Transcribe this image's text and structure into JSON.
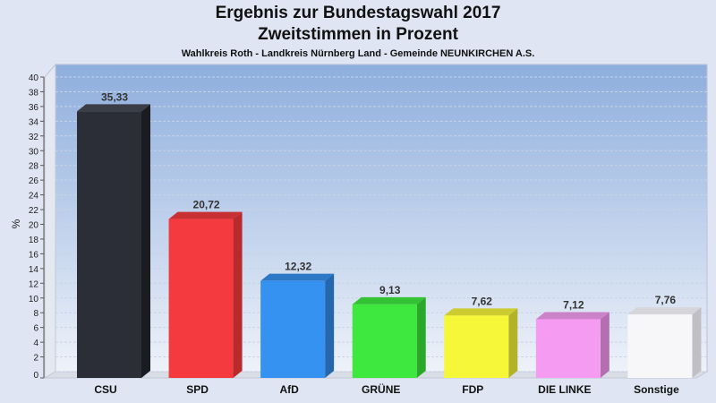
{
  "chart_data": {
    "type": "bar",
    "title": "Ergebnis zur Bundestagswahl 2017",
    "subtitle": "Zweitstimmen in Prozent",
    "caption": "Wahlkreis Roth - Landkreis Nürnberg Land - Gemeinde NEUNKIRCHEN A.S.",
    "ylabel": "%",
    "xlabel": "",
    "ylim": [
      0,
      40
    ],
    "ytick_step": 2,
    "grid": true,
    "legend": "none",
    "categories": [
      "CSU",
      "SPD",
      "AfD",
      "GRÜNE",
      "FDP",
      "DIE LINKE",
      "Sonstige"
    ],
    "values": [
      35.33,
      20.72,
      12.32,
      9.13,
      7.62,
      7.12,
      7.76
    ],
    "value_labels": [
      "35,33",
      "20,72",
      "12,32",
      "9,13",
      "7,62",
      "7,12",
      "7,76"
    ],
    "colors": [
      "#2b2e36",
      "#f43a3e",
      "#3592f0",
      "#3ee83e",
      "#f7f73a",
      "#f59cf2",
      "#f7f7f9"
    ],
    "side_colors": [
      "#1a1c22",
      "#b82a2c",
      "#2467ac",
      "#2aa82a",
      "#b3b32a",
      "#b270b0",
      "#c0c0c4"
    ],
    "top_colors": [
      "#3a3d46",
      "#c83034",
      "#2c78c6",
      "#34c234",
      "#cccc30",
      "#cc82c8",
      "#d6d6da"
    ]
  }
}
